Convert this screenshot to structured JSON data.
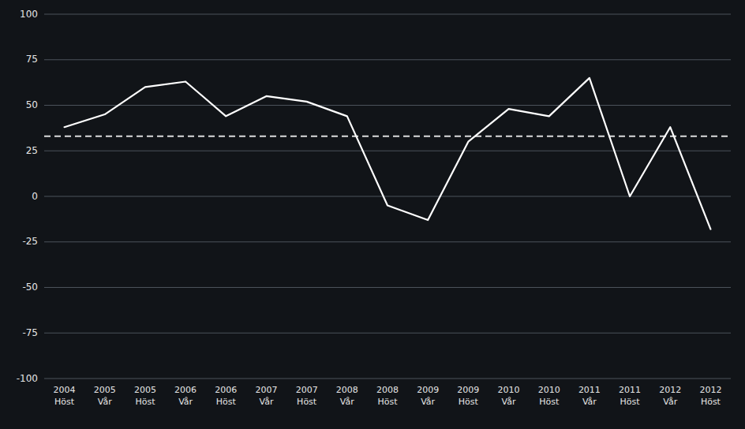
{
  "chart_data": {
    "type": "line",
    "categories": [
      "2004\nHöst",
      "2005\nVår",
      "2005\nHöst",
      "2006\nVår",
      "2006\nHöst",
      "2007\nVår",
      "2007\nHöst",
      "2008\nVår",
      "2008\nHöst",
      "2009\nVår",
      "2009\nHöst",
      "2010\nVår",
      "2010\nHöst",
      "2011\nVår",
      "2011\nHöst",
      "2012\nVår",
      "2012\nHöst"
    ],
    "values": [
      38,
      45,
      60,
      63,
      44,
      55,
      52,
      44,
      -5,
      -13,
      30,
      48,
      44,
      65,
      0,
      38,
      -18
    ],
    "reference_line": 33,
    "color": "#ffffff",
    "ylim": [
      -100,
      100
    ],
    "yticks": [
      -100,
      -75,
      -50,
      -25,
      0,
      25,
      50,
      75,
      100
    ],
    "grid": true
  }
}
